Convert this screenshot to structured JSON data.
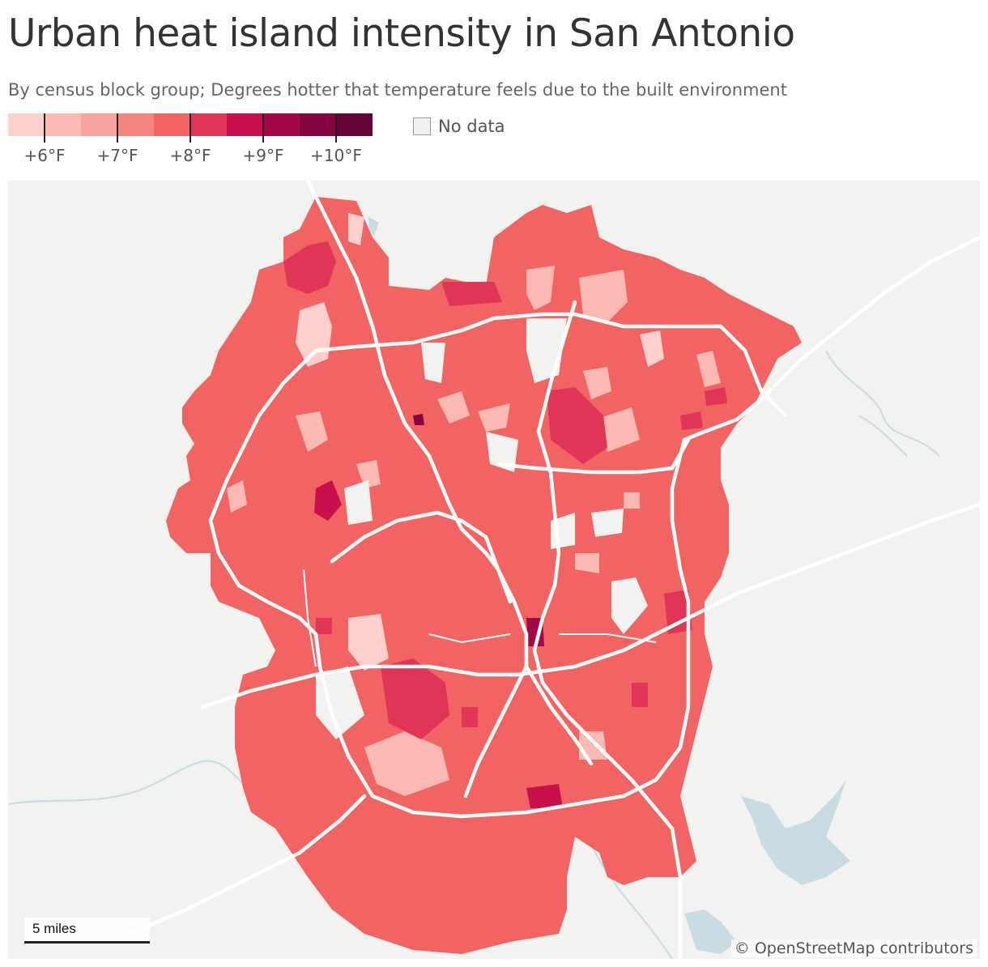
{
  "header": {
    "title": "Urban heat island intensity in San Antonio",
    "subtitle": "By census block group; Degrees hotter that temperature feels due to the built environment"
  },
  "legend": {
    "colors": [
      "#fdd0cd",
      "#fbb9b4",
      "#f8a3a1",
      "#f6857f",
      "#f26363",
      "#e03556",
      "#c7104c",
      "#a20847",
      "#850540",
      "#650435"
    ],
    "ticks": [
      {
        "label": "+6°F",
        "value": 6
      },
      {
        "label": "+7°F",
        "value": 7
      },
      {
        "label": "+8°F",
        "value": 8
      },
      {
        "label": "+9°F",
        "value": 9
      },
      {
        "label": "+10°F",
        "value": 10
      }
    ],
    "no_data_label": "No data",
    "no_data_color": "#f1f1f0"
  },
  "map": {
    "base_color": "#f26363",
    "background_color": "#f2f2f0",
    "water_color": "#c9dbe3",
    "road_color": "#ffffff",
    "scale_label": "5 miles",
    "credit": "© OpenStreetMap contributors"
  }
}
